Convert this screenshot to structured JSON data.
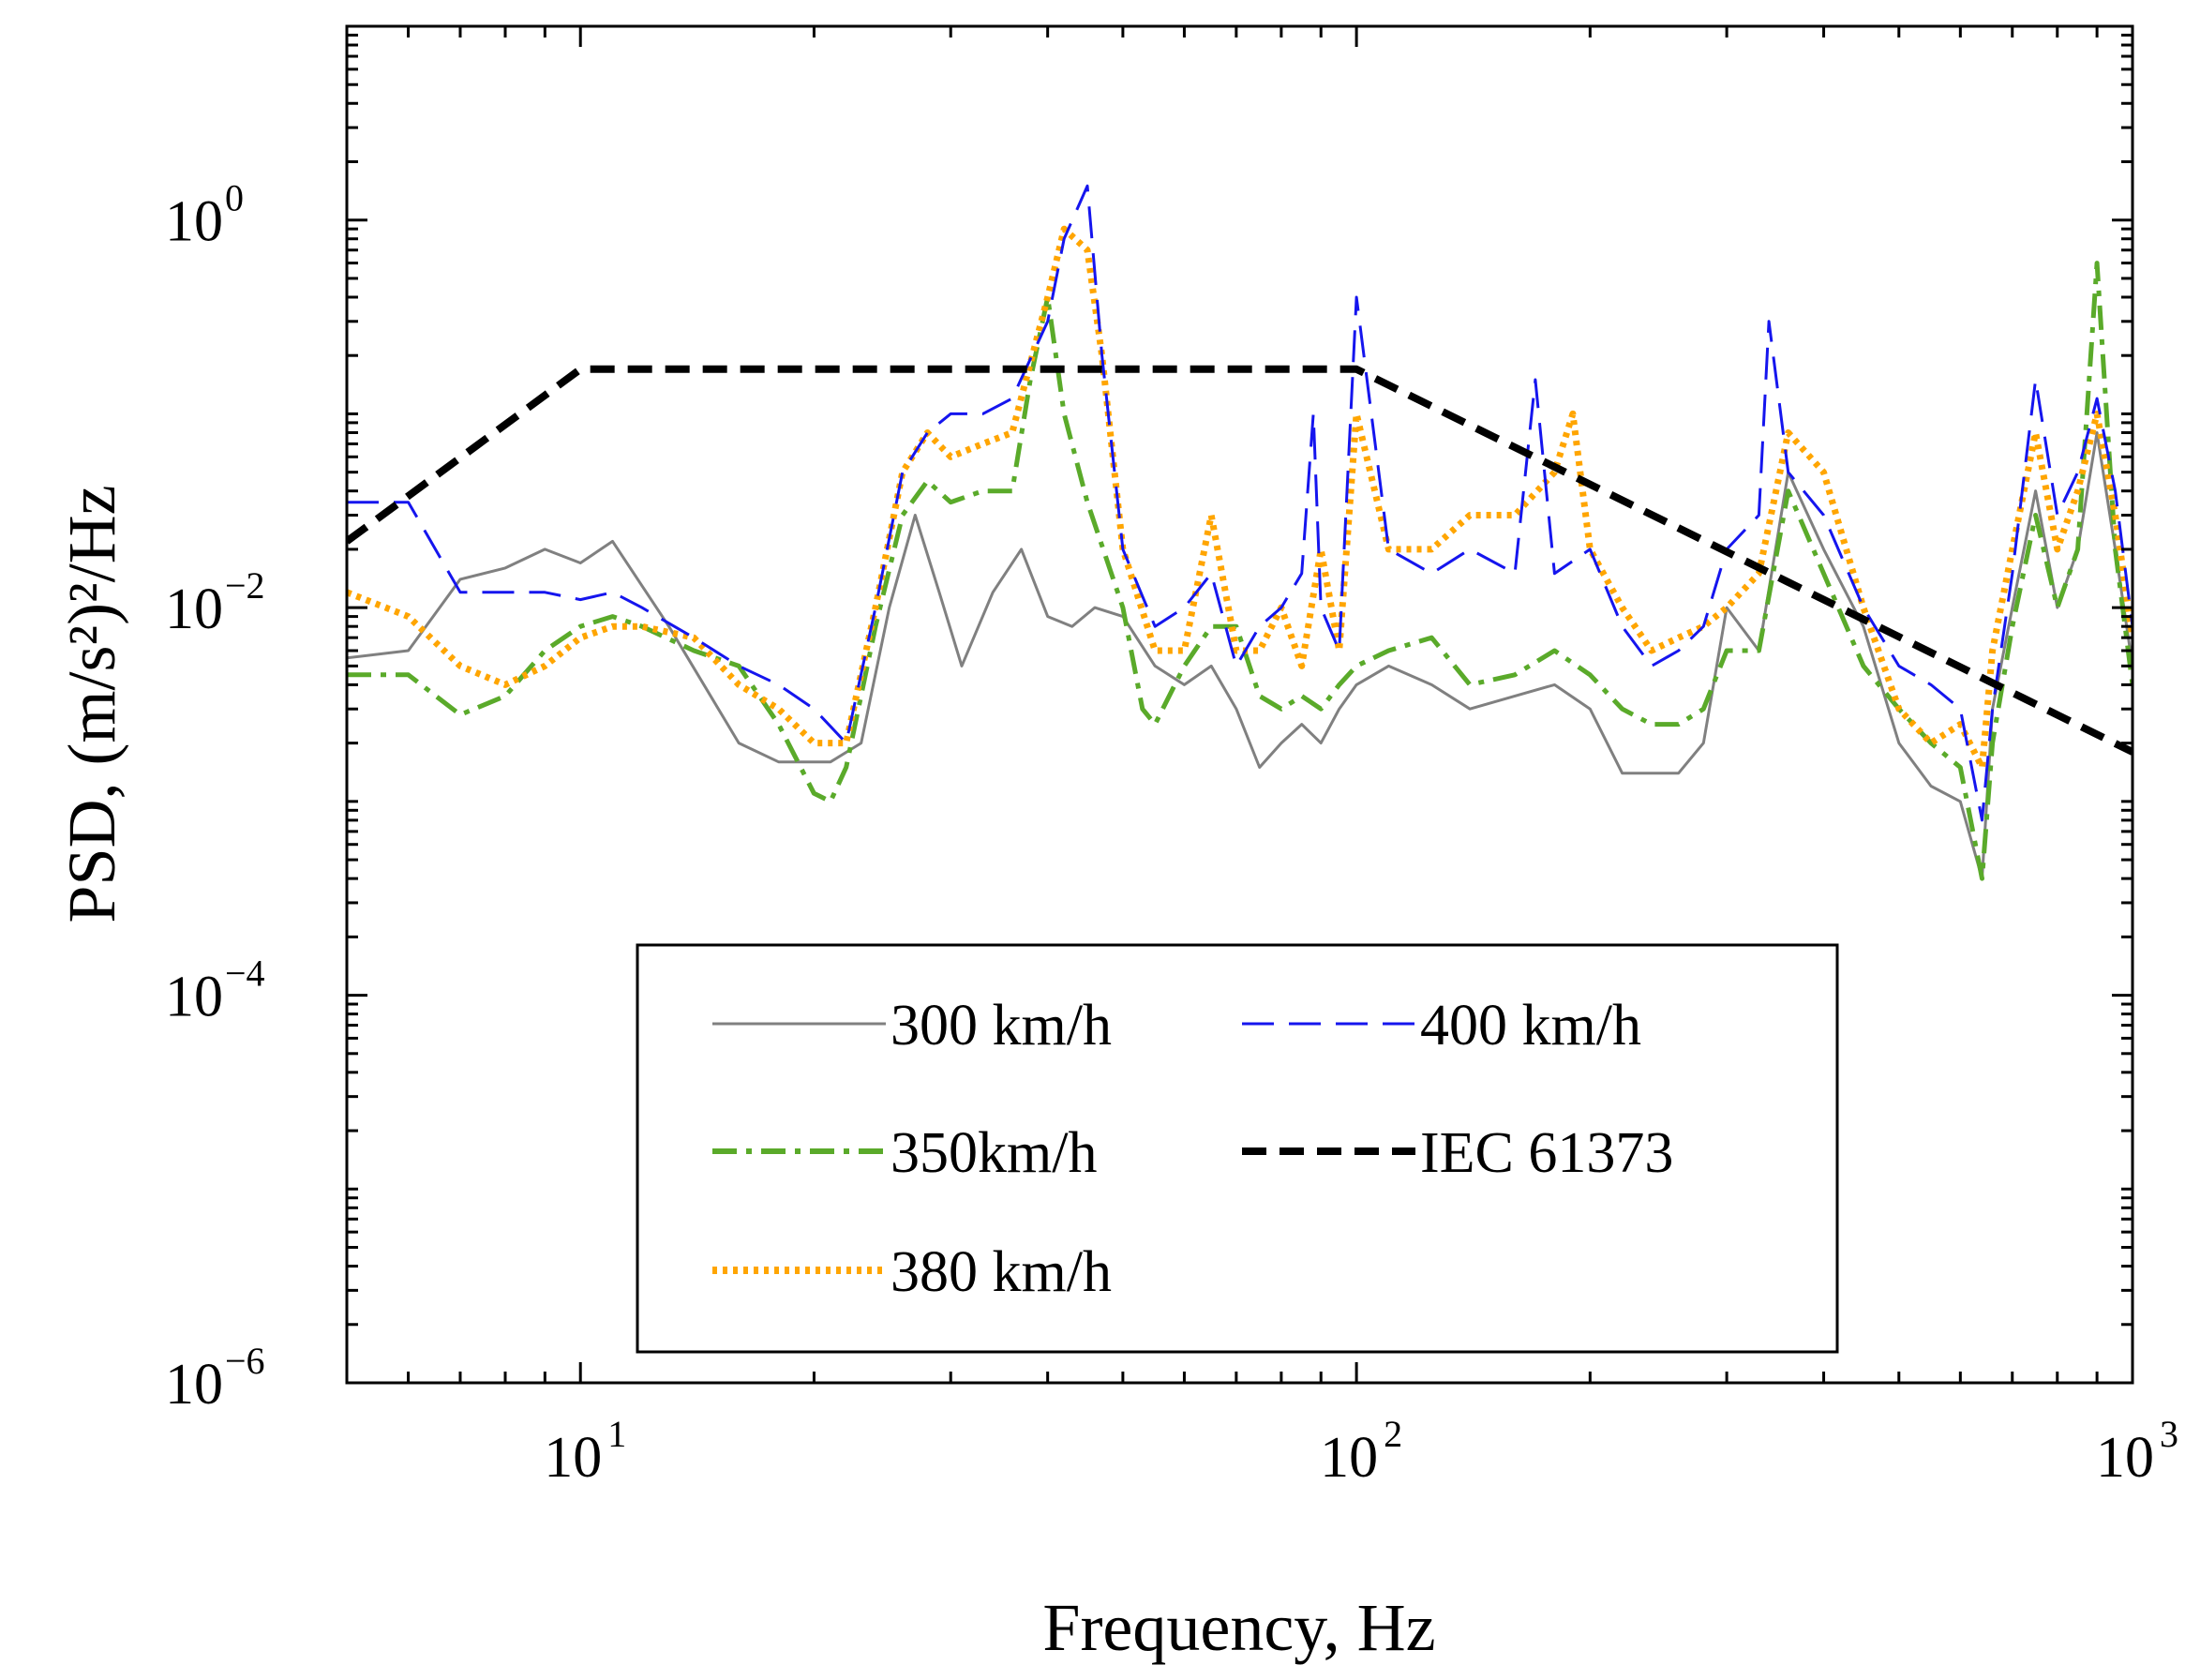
{
  "chart_data": {
    "type": "line",
    "title": "",
    "xlabel": "Frequency, Hz",
    "ylabel": "PSD, (m/s²)²/Hz",
    "x_scale": "log",
    "y_scale": "log",
    "xlim": [
      5,
      1000
    ],
    "ylim": [
      1e-06,
      10
    ],
    "x_ticks": [
      {
        "base": "10",
        "exp": "1"
      },
      {
        "base": "10",
        "exp": "2"
      },
      {
        "base": "10",
        "exp": "3"
      }
    ],
    "y_ticks": [
      {
        "base": "10",
        "exp": "0"
      },
      {
        "base": "10",
        "exp": "−2"
      },
      {
        "base": "10",
        "exp": "−4"
      },
      {
        "base": "10",
        "exp": "−6"
      }
    ],
    "legend_position": "bottom-center",
    "series": [
      {
        "name": "300 km/h",
        "color": "#808080",
        "style": "solid",
        "x": [
          5,
          6,
          7,
          8,
          9,
          10,
          11,
          13,
          16,
          18,
          21,
          23,
          25,
          27,
          29,
          31,
          34,
          37,
          40,
          43,
          46,
          50,
          55,
          60,
          65,
          70,
          75,
          80,
          85,
          90,
          95,
          100,
          110,
          125,
          140,
          160,
          180,
          200,
          220,
          240,
          260,
          280,
          300,
          330,
          360,
          400,
          450,
          500,
          550,
          600,
          640,
          660,
          700,
          750,
          800,
          850,
          900,
          950,
          1000
        ],
        "y": [
          0.0055,
          0.006,
          0.014,
          0.016,
          0.02,
          0.017,
          0.022,
          0.008,
          0.002,
          0.0016,
          0.0016,
          0.002,
          0.01,
          0.03,
          0.012,
          0.005,
          0.012,
          0.02,
          0.009,
          0.008,
          0.01,
          0.009,
          0.005,
          0.004,
          0.005,
          0.003,
          0.0015,
          0.002,
          0.0025,
          0.002,
          0.003,
          0.004,
          0.005,
          0.004,
          0.003,
          0.0035,
          0.004,
          0.003,
          0.0014,
          0.0014,
          0.0014,
          0.002,
          0.01,
          0.006,
          0.05,
          0.02,
          0.008,
          0.002,
          0.0012,
          0.001,
          0.0004,
          0.003,
          0.01,
          0.04,
          0.01,
          0.02,
          0.08,
          0.02,
          0.005
        ]
      },
      {
        "name": "350km/h",
        "color": "#5aaa2a",
        "style": "dashdot",
        "x": [
          5,
          6,
          7,
          8,
          9,
          10,
          11,
          12,
          14,
          16,
          18,
          20,
          21,
          22,
          24,
          26,
          28,
          30,
          33,
          36,
          38,
          40,
          42,
          45,
          50,
          53,
          55,
          60,
          65,
          70,
          75,
          80,
          85,
          90,
          95,
          100,
          110,
          125,
          140,
          160,
          180,
          200,
          220,
          240,
          260,
          280,
          300,
          330,
          360,
          400,
          450,
          500,
          550,
          600,
          640,
          660,
          700,
          750,
          800,
          850,
          900,
          950,
          1000
        ],
        "y": [
          0.0045,
          0.0045,
          0.0028,
          0.0035,
          0.006,
          0.008,
          0.009,
          0.008,
          0.006,
          0.005,
          0.0025,
          0.0011,
          0.001,
          0.0015,
          0.008,
          0.03,
          0.045,
          0.035,
          0.04,
          0.04,
          0.15,
          0.4,
          0.1,
          0.035,
          0.01,
          0.003,
          0.0025,
          0.005,
          0.008,
          0.008,
          0.0035,
          0.003,
          0.0035,
          0.003,
          0.004,
          0.005,
          0.006,
          0.007,
          0.004,
          0.0045,
          0.006,
          0.0045,
          0.003,
          0.0025,
          0.0025,
          0.003,
          0.006,
          0.006,
          0.04,
          0.015,
          0.005,
          0.003,
          0.002,
          0.0015,
          0.0004,
          0.002,
          0.008,
          0.03,
          0.01,
          0.02,
          0.6,
          0.02,
          0.004
        ]
      },
      {
        "name": "380 km/h",
        "color": "#ffa500",
        "style": "dotted",
        "x": [
          5,
          6,
          7,
          8,
          9,
          10,
          11,
          12,
          14,
          16,
          18,
          20,
          22,
          24,
          26,
          28,
          30,
          33,
          36,
          40,
          42,
          45,
          47,
          50,
          55,
          60,
          65,
          70,
          75,
          80,
          85,
          90,
          95,
          100,
          110,
          125,
          140,
          160,
          180,
          190,
          200,
          220,
          240,
          260,
          280,
          300,
          330,
          360,
          400,
          450,
          500,
          550,
          600,
          640,
          660,
          700,
          750,
          800,
          850,
          900,
          950,
          1000
        ],
        "y": [
          0.012,
          0.009,
          0.005,
          0.004,
          0.005,
          0.007,
          0.008,
          0.008,
          0.007,
          0.004,
          0.003,
          0.002,
          0.002,
          0.01,
          0.05,
          0.08,
          0.06,
          0.07,
          0.08,
          0.4,
          0.9,
          0.7,
          0.2,
          0.02,
          0.006,
          0.006,
          0.03,
          0.006,
          0.006,
          0.01,
          0.005,
          0.02,
          0.006,
          0.1,
          0.02,
          0.02,
          0.03,
          0.03,
          0.05,
          0.1,
          0.02,
          0.01,
          0.006,
          0.007,
          0.008,
          0.01,
          0.015,
          0.08,
          0.05,
          0.01,
          0.003,
          0.002,
          0.0025,
          0.0015,
          0.006,
          0.02,
          0.08,
          0.02,
          0.04,
          0.1,
          0.03,
          0.007
        ]
      },
      {
        "name": "400 km/h",
        "color": "#1515ee",
        "style": "dashed",
        "x": [
          5,
          6,
          7,
          8,
          9,
          10,
          11,
          12,
          14,
          16,
          18,
          20,
          22,
          24,
          26,
          28,
          30,
          33,
          36,
          40,
          42,
          45,
          47,
          50,
          55,
          60,
          65,
          70,
          75,
          80,
          85,
          88,
          90,
          95,
          100,
          110,
          125,
          140,
          160,
          170,
          180,
          200,
          220,
          240,
          260,
          280,
          300,
          330,
          340,
          360,
          400,
          450,
          500,
          550,
          600,
          640,
          660,
          700,
          750,
          800,
          850,
          900,
          950,
          1000
        ],
        "y": [
          0.035,
          0.035,
          0.012,
          0.012,
          0.012,
          0.011,
          0.012,
          0.01,
          0.007,
          0.005,
          0.004,
          0.003,
          0.002,
          0.01,
          0.05,
          0.08,
          0.1,
          0.1,
          0.12,
          0.3,
          0.8,
          1.5,
          0.2,
          0.02,
          0.008,
          0.01,
          0.015,
          0.005,
          0.008,
          0.01,
          0.015,
          0.1,
          0.01,
          0.006,
          0.4,
          0.02,
          0.015,
          0.02,
          0.015,
          0.15,
          0.015,
          0.02,
          0.008,
          0.005,
          0.006,
          0.008,
          0.02,
          0.03,
          0.3,
          0.05,
          0.03,
          0.01,
          0.005,
          0.004,
          0.003,
          0.0008,
          0.003,
          0.015,
          0.15,
          0.03,
          0.05,
          0.12,
          0.04,
          0.008
        ]
      },
      {
        "name": "IEC 61373",
        "color": "#000000",
        "style": "dashed-bold",
        "x": [
          5,
          10,
          100,
          1000
        ],
        "y": [
          0.022,
          0.17,
          0.17,
          0.0018
        ]
      }
    ],
    "legend_order": [
      "300 km/h",
      "400 km/h",
      "350km/h",
      "IEC 61373",
      "380 km/h"
    ]
  }
}
